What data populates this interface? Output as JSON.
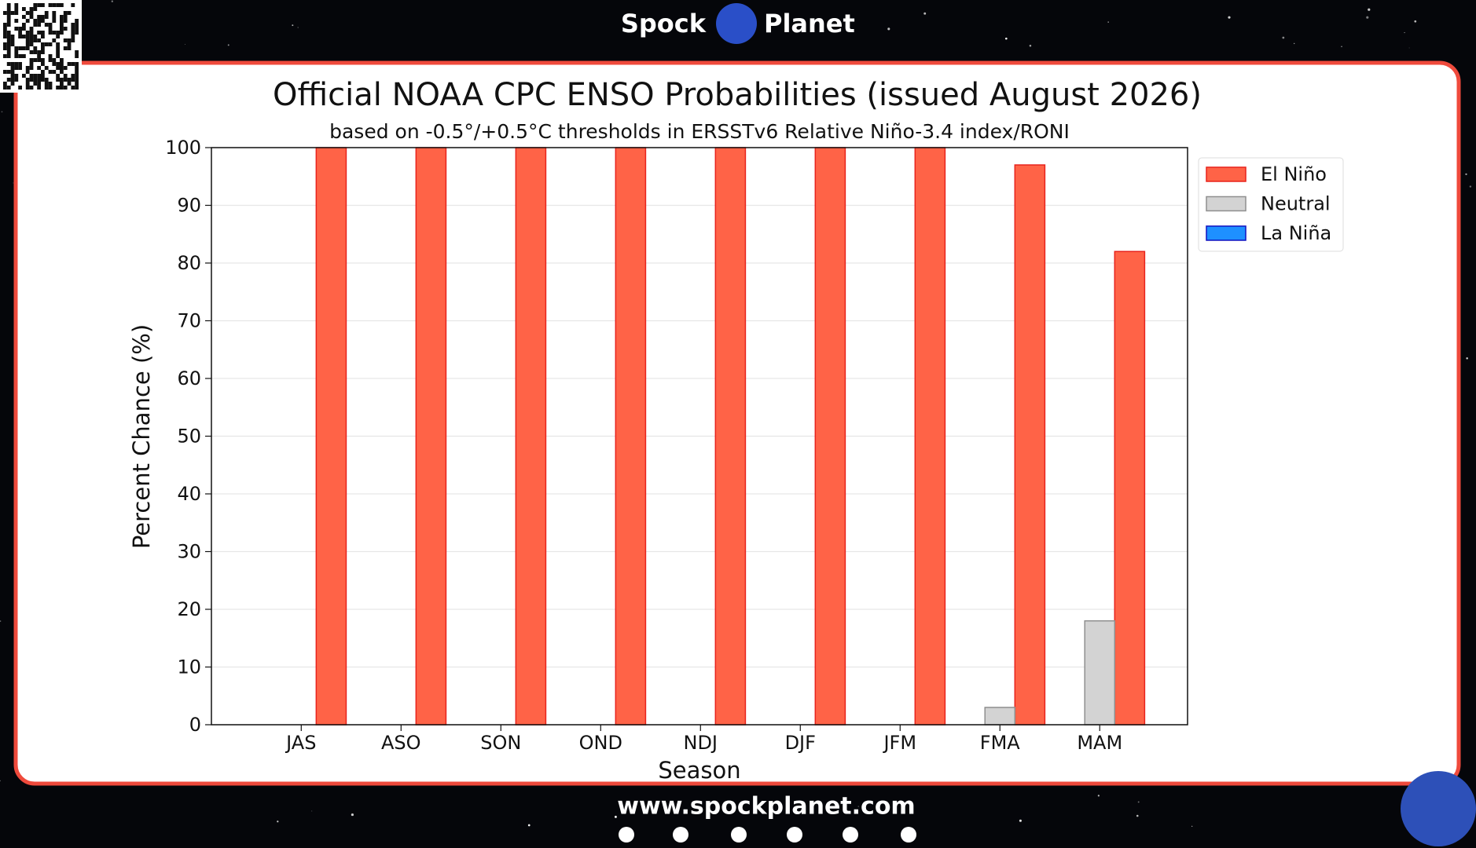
{
  "header": {
    "left": "Spock",
    "right": "Planet"
  },
  "footer": {
    "url": "www.spockplanet.com"
  },
  "chart_data": {
    "type": "bar",
    "title": "Official NOAA CPC ENSO Probabilities (issued August 2026)",
    "subtitle": "based on -0.5°/+0.5°C thresholds in ERSSTv6 Relative Niño-3.4 index/RONI",
    "x_label": "Season",
    "y_label": "Percent Chance (%)",
    "categories": [
      "JAS",
      "ASO",
      "SON",
      "OND",
      "NDJ",
      "DJF",
      "JFM",
      "FMA",
      "MAM"
    ],
    "series": [
      {
        "name": "El Niño",
        "color": "#ff6347",
        "edge": "#e8231c",
        "values": [
          100,
          100,
          100,
          100,
          100,
          100,
          100,
          97,
          82
        ]
      },
      {
        "name": "Neutral",
        "color": "#d3d3d3",
        "edge": "#8f8f8f",
        "values": [
          0,
          0,
          0,
          0,
          0,
          0,
          0,
          3,
          18
        ]
      },
      {
        "name": "La Niña",
        "color": "#1e90ff",
        "edge": "#1010c0",
        "values": [
          0,
          0,
          0,
          0,
          0,
          0,
          0,
          0,
          0
        ]
      }
    ],
    "ylim": [
      0,
      100
    ],
    "yticks": [
      0,
      10,
      20,
      30,
      40,
      50,
      60,
      70,
      80,
      90,
      100
    ],
    "grid": true,
    "legend": "outside-right"
  }
}
